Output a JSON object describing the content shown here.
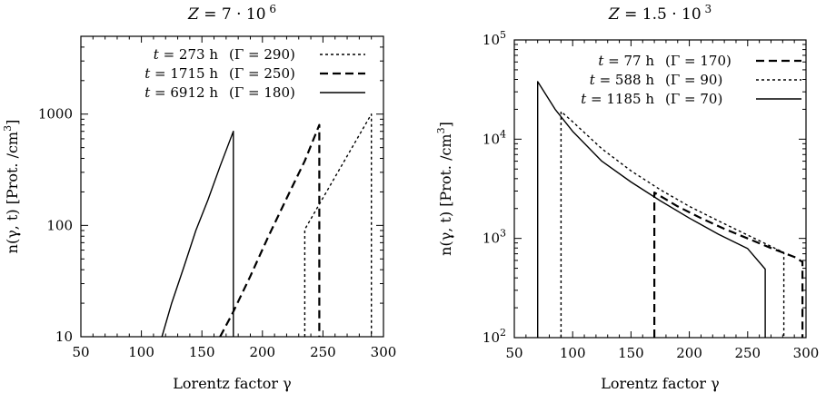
{
  "chart_data": [
    {
      "type": "line",
      "title": "Z = 7 · 10 6",
      "title_parts": {
        "var": "Z",
        "eq": "= 7 · 10",
        "exp": "6"
      },
      "xlabel": "Lorentz  factor  γ",
      "ylabel": "n(γ, t)    [Prot. /cm3]",
      "ylabel_parts": {
        "main": "n(γ, t)    [Prot. /cm",
        "exp": "3",
        "close": "]"
      },
      "xlim": [
        50,
        300
      ],
      "ylim": [
        10,
        5000
      ],
      "yscale": "log",
      "xticks": [
        50,
        100,
        150,
        200,
        250,
        300
      ],
      "yticks": [
        {
          "v": 10,
          "label": "10"
        },
        {
          "v": 100,
          "label": "100"
        },
        {
          "v": 1000,
          "label": "1000"
        }
      ],
      "legend_position": "top-right",
      "series": [
        {
          "t": "t = 273 h",
          "gamma": "(Γ = 290)",
          "style": "dotted",
          "x": [
            235,
            235,
            290,
            290,
            290
          ],
          "y": [
            10,
            92,
            1000,
            1000,
            10
          ]
        },
        {
          "t": "t = 1715 h",
          "gamma": "(Γ = 250)",
          "style": "dashed",
          "x": [
            165,
            175,
            190,
            205,
            220,
            235,
            247,
            247
          ],
          "y": [
            10,
            16,
            35,
            80,
            175,
            380,
            800,
            10
          ]
        },
        {
          "t": "t = 6912 h",
          "gamma": "(Γ = 180)",
          "style": "solid",
          "x": [
            117,
            125,
            135,
            145,
            155,
            165,
            176,
            176
          ],
          "y": [
            10,
            20,
            42,
            90,
            170,
            340,
            700,
            10
          ]
        }
      ]
    },
    {
      "type": "line",
      "title": "Z = 1.5 · 10 3",
      "title_parts": {
        "var": "Z",
        "eq": "= 1.5 · 10",
        "exp": "3"
      },
      "xlabel": "Lorentz  factor  γ",
      "ylabel": "n(γ, t)    [Prot. /cm3]",
      "ylabel_parts": {
        "main": "n(γ, t)    [Prot. /cm",
        "exp": "3",
        "close": "]"
      },
      "xlim": [
        50,
        300
      ],
      "ylim": [
        100,
        100000
      ],
      "yscale": "log",
      "xticks": [
        50,
        100,
        150,
        200,
        250,
        300
      ],
      "yticks": [
        {
          "v": 100,
          "label": "10",
          "exp": "2"
        },
        {
          "v": 1000,
          "label": "10",
          "exp": "3"
        },
        {
          "v": 10000,
          "label": "10",
          "exp": "4"
        },
        {
          "v": 100000,
          "label": "10",
          "exp": "5"
        }
      ],
      "legend_position": "top-right",
      "series": [
        {
          "t": "t = 77 h",
          "gamma": "(Γ = 170)",
          "style": "dashed",
          "x": [
            170,
            170,
            190,
            210,
            230,
            250,
            270,
            290,
            297,
            297
          ],
          "y": [
            100,
            2900,
            2100,
            1600,
            1250,
            1000,
            800,
            650,
            580,
            100
          ]
        },
        {
          "t": "t = 588 h",
          "gamma": "(Γ = 90)",
          "style": "dotted",
          "x": [
            90,
            90,
            100,
            125,
            150,
            175,
            200,
            225,
            250,
            281,
            281
          ],
          "y": [
            100,
            19000,
            15000,
            8000,
            4800,
            3100,
            2100,
            1500,
            1080,
            720,
            100
          ]
        },
        {
          "t": "t = 1185 h",
          "gamma": "(Γ = 70)",
          "style": "solid",
          "x": [
            70,
            70,
            85,
            100,
            125,
            150,
            175,
            200,
            225,
            250,
            265,
            265
          ],
          "y": [
            100,
            38000,
            20000,
            12000,
            6000,
            3700,
            2400,
            1600,
            1100,
            790,
            490,
            100
          ]
        }
      ]
    }
  ]
}
